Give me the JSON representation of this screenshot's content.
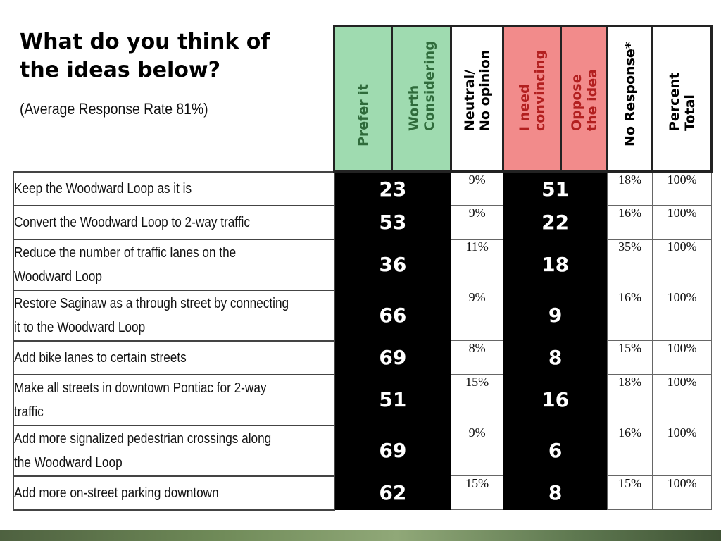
{
  "title": "What do you think of the ideas below?",
  "subtitle": "(Average Response Rate 81%)",
  "columns": {
    "prefer": "Prefer it",
    "worth": "Worth\nConsidering",
    "neutral": "Neutral/\nNo opinion",
    "convince": "I need\nconvincing",
    "oppose": "Oppose\nthe idea",
    "noresp": "No Response*",
    "total": "Percent\nTotal"
  },
  "colors": {
    "favor": "#9fdbb0",
    "against": "#f28b8b"
  },
  "rows": [
    {
      "label": "Keep the Woodward Loop as it is",
      "favor": "23",
      "neutral": "9%",
      "against": "51",
      "no_response": "18%",
      "total": "100%"
    },
    {
      "label": "Convert the Woodward Loop to 2-way traffic",
      "favor": "53",
      "neutral": "9%",
      "against": "22",
      "no_response": "16%",
      "total": "100%"
    },
    {
      "label": "Reduce the number of traffic lanes on the\nWoodward Loop",
      "favor": "36",
      "neutral": "11%",
      "against": "18",
      "no_response": "35%",
      "total": "100%"
    },
    {
      "label": "Restore Saginaw as a through street by connecting\nit to the Woodward Loop",
      "favor": "66",
      "neutral": "9%",
      "against": "9",
      "no_response": "16%",
      "total": "100%"
    },
    {
      "label": "Add bike lanes to certain streets",
      "favor": "69",
      "neutral": "8%",
      "against": "8",
      "no_response": "15%",
      "total": "100%"
    },
    {
      "label": "Make all streets in downtown Pontiac for 2-way\ntraffic",
      "favor": "51",
      "neutral": "15%",
      "against": "16",
      "no_response": "18%",
      "total": "100%"
    },
    {
      "label": "Add more signalized pedestrian crossings along\nthe Woodward Loop",
      "favor": "69",
      "neutral": "9%",
      "against": "6",
      "no_response": "16%",
      "total": "100%"
    },
    {
      "label": "Add more on-street parking downtown",
      "favor": "62",
      "neutral": "15%",
      "against": "8",
      "no_response": "15%",
      "total": "100%"
    }
  ]
}
